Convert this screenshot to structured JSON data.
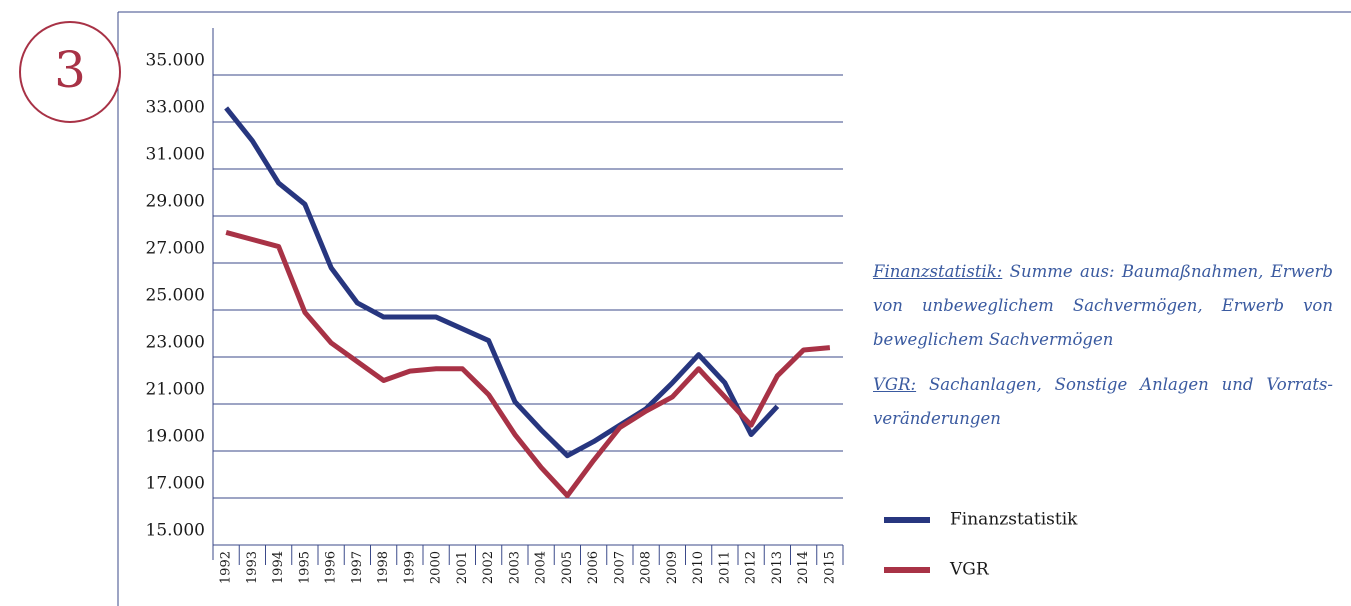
{
  "badge": "3",
  "chart_data": {
    "type": "line",
    "categories": [
      "1992",
      "1993",
      "1994",
      "1995",
      "1996",
      "1997",
      "1998",
      "1999",
      "2000",
      "2001",
      "2002",
      "2003",
      "2004",
      "2005",
      "2006",
      "2007",
      "2008",
      "2009",
      "2010",
      "2011",
      "2012",
      "2013",
      "2014",
      "2015"
    ],
    "series": [
      {
        "name": "Finanzstatistik",
        "color": "#27367f",
        "values": [
          33600,
          32200,
          30400,
          29500,
          26800,
          25300,
          24700,
          24700,
          24700,
          24200,
          23700,
          21100,
          19900,
          18800,
          19400,
          20100,
          20800,
          21900,
          23100,
          21900,
          19700,
          20900,
          null,
          null
        ]
      },
      {
        "name": "VGR",
        "color": "#a83246",
        "values": [
          28300,
          28000,
          27700,
          24900,
          23600,
          22800,
          22000,
          22400,
          22500,
          22500,
          21400,
          19700,
          18300,
          17100,
          18600,
          20000,
          20700,
          21300,
          22500,
          21300,
          20100,
          22200,
          23300,
          23400
        ]
      }
    ],
    "ylim": [
      15000,
      37000
    ],
    "yticks": [
      {
        "value": 15000,
        "label": "15.000"
      },
      {
        "value": 17000,
        "label": "17.000"
      },
      {
        "value": 19000,
        "label": "19.000"
      },
      {
        "value": 21000,
        "label": "21.000"
      },
      {
        "value": 23000,
        "label": "23.000"
      },
      {
        "value": 25000,
        "label": "25.000"
      },
      {
        "value": 27000,
        "label": "27.000"
      },
      {
        "value": 29000,
        "label": "29.000"
      },
      {
        "value": 31000,
        "label": "31.000"
      },
      {
        "value": 33000,
        "label": "33.000"
      },
      {
        "value": 35000,
        "label": "35.000"
      }
    ],
    "grid": true,
    "legend": "right",
    "notes": [
      {
        "term": "Finanzstatistik:",
        "text": " Summe aus: Baumaßnahmen, Erwerb von unbeweglichem Sachvermögen, Erwerb von beweglichem Sachvermögen"
      },
      {
        "term": "VGR:",
        "text": " Sachanlagen, Sonstige Anlagen und Vorrats­veränderungen"
      }
    ]
  }
}
